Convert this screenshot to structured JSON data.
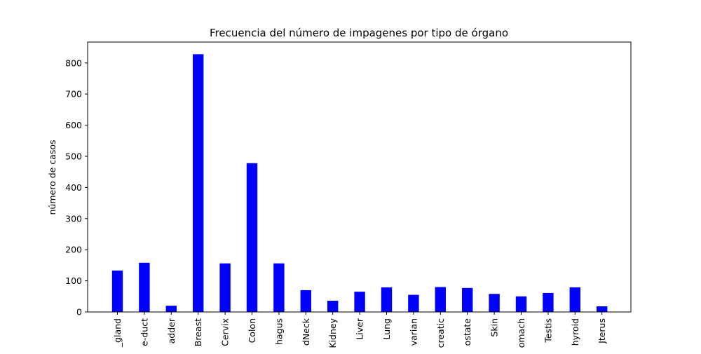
{
  "chart_data": {
    "type": "bar",
    "title": "Frecuencia del número de impagenes por tipo de órgano",
    "xlabel": "",
    "ylabel": "número de casos",
    "categories": [
      "_gland",
      "e-duct",
      "adder",
      "Breast",
      "Cervix",
      "Colon",
      "hagus",
      "dNeck",
      "Kidney",
      "Liver",
      "Lung",
      "varian",
      "creatic",
      "ostate",
      "Skin",
      "omach",
      "Testis",
      "hyroid",
      "Jterus"
    ],
    "values": [
      133,
      158,
      20,
      828,
      156,
      478,
      156,
      70,
      36,
      65,
      79,
      55,
      80,
      77,
      58,
      50,
      61,
      79,
      18
    ],
    "ylim": [
      0,
      867
    ],
    "yticks": [
      0,
      100,
      200,
      300,
      400,
      500,
      600,
      700,
      800
    ],
    "bar_color": "#0000ff",
    "grid": false,
    "legend": "none"
  }
}
